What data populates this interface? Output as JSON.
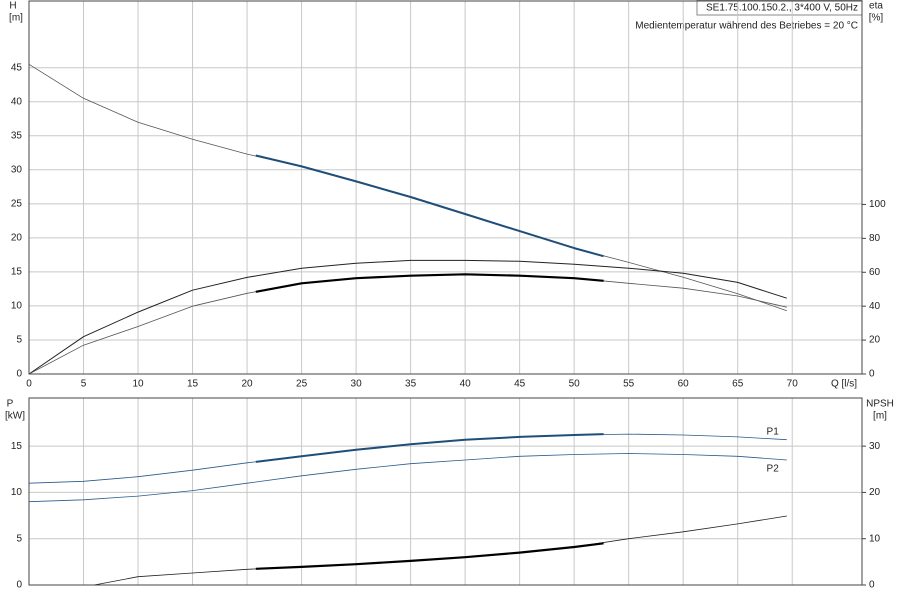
{
  "chart_data": [
    {
      "type": "line",
      "ylabel": "H",
      "yunit": "[m]",
      "y2label": "eta",
      "y2unit": "[%]",
      "xlabel": "Q [l/s]",
      "model": "SE1.75.100.150.2., 3*400 V, 50Hz",
      "note": "Medientemperatur während des Betriebes = 20 °C",
      "xlim": [
        0,
        76.4
      ],
      "xticks": [
        0,
        5,
        10,
        15,
        20,
        25,
        30,
        35,
        40,
        45,
        50,
        55,
        60,
        65,
        70
      ],
      "ylim": [
        0,
        54.8
      ],
      "yticks": [
        0,
        5,
        10,
        15,
        20,
        25,
        30,
        35,
        40,
        45
      ],
      "y2lim": [
        0,
        220
      ],
      "y2ticks": [
        0,
        20,
        40,
        60,
        80,
        100
      ],
      "grid": true,
      "series": [
        {
          "color": "#555555",
          "width": 0.8,
          "x": [
            0,
            5,
            10,
            15,
            20,
            25,
            30,
            35,
            40,
            45,
            50,
            55,
            60,
            65,
            69.5
          ],
          "values": [
            45.5,
            40.5,
            37,
            34.5,
            32.3,
            30.5,
            28.3,
            26,
            23.5,
            21,
            18.5,
            16.4,
            14.2,
            11.8,
            9.3
          ]
        },
        {
          "color": "#1f4e79",
          "width": 2,
          "x": [
            20.8,
            25,
            30,
            35,
            40,
            45,
            50,
            52.7
          ],
          "values": [
            32.1,
            30.5,
            28.3,
            26,
            23.5,
            21,
            18.5,
            17.3
          ]
        },
        {
          "axis": "y2",
          "color": "#222222",
          "width": 1,
          "x": [
            0,
            5,
            10,
            15,
            20,
            25,
            30,
            35,
            40,
            45,
            50,
            55,
            60,
            65,
            69.5
          ],
          "values": [
            0,
            22,
            36.5,
            49.4,
            57,
            62.4,
            65.3,
            67,
            67,
            66.5,
            64.7,
            62.4,
            59.4,
            54,
            44.7
          ]
        },
        {
          "axis": "y2",
          "color": "#555555",
          "width": 0.8,
          "x": [
            0,
            5,
            10,
            15,
            20,
            25,
            30,
            35,
            40,
            45,
            50,
            55,
            60,
            65,
            69.5
          ],
          "values": [
            0,
            17,
            28,
            40,
            47.6,
            53.5,
            56.5,
            58,
            58.8,
            58,
            56.5,
            53.5,
            50.6,
            46,
            39.4
          ]
        },
        {
          "axis": "y2",
          "color": "#000000",
          "width": 2.2,
          "x": [
            20.8,
            25,
            30,
            35,
            40,
            45,
            50,
            52.7
          ],
          "values": [
            48.5,
            53.5,
            56.5,
            58,
            58.8,
            58,
            56.5,
            55
          ]
        }
      ]
    },
    {
      "type": "line",
      "ylabel": "P",
      "yunit": "[kW]",
      "y2label": "NPSH",
      "y2unit": "[m]",
      "xlim": [
        0,
        76.4
      ],
      "ylim": [
        0,
        20.2
      ],
      "yticks": [
        0,
        5,
        10,
        15
      ],
      "y2lim": [
        0,
        40.4
      ],
      "y2ticks": [
        0,
        10,
        20,
        30
      ],
      "grid": true,
      "series": [
        {
          "name": "P1",
          "color": "#2a5a8a",
          "width": 0.8,
          "x": [
            0,
            5,
            10,
            15,
            20,
            25,
            30,
            35,
            40,
            45,
            50,
            55,
            60,
            65,
            69.5
          ],
          "values": [
            11,
            11.2,
            11.7,
            12.4,
            13.2,
            13.9,
            14.6,
            15.2,
            15.7,
            16,
            16.2,
            16.3,
            16.2,
            16,
            15.7
          ]
        },
        {
          "color": "#1f4e79",
          "width": 2,
          "x": [
            20.8,
            25,
            30,
            35,
            40,
            45,
            50,
            52.7
          ],
          "values": [
            13.3,
            13.9,
            14.6,
            15.2,
            15.7,
            16,
            16.2,
            16.3
          ]
        },
        {
          "name": "P2",
          "color": "#2a5a8a",
          "width": 0.8,
          "x": [
            0,
            5,
            10,
            15,
            20,
            25,
            30,
            35,
            40,
            45,
            50,
            55,
            60,
            65,
            69.5
          ],
          "values": [
            9,
            9.2,
            9.6,
            10.2,
            11,
            11.8,
            12.5,
            13.1,
            13.5,
            13.9,
            14.1,
            14.2,
            14.1,
            13.9,
            13.5
          ]
        },
        {
          "axis": "y2",
          "color": "#222222",
          "width": 0.8,
          "x": [
            6,
            10,
            15,
            20,
            25,
            30,
            35,
            40,
            45,
            50,
            55,
            60,
            65,
            69.5
          ],
          "values": [
            0,
            1.8,
            2.6,
            3.4,
            3.9,
            4.5,
            5.2,
            6,
            7,
            8.2,
            10,
            11.5,
            13.2,
            14.9
          ]
        },
        {
          "axis": "y2",
          "color": "#000000",
          "width": 2.2,
          "x": [
            20.8,
            25,
            30,
            35,
            40,
            45,
            50,
            52.7
          ],
          "values": [
            3.5,
            3.9,
            4.5,
            5.2,
            6,
            7,
            8.2,
            9
          ]
        }
      ]
    }
  ]
}
